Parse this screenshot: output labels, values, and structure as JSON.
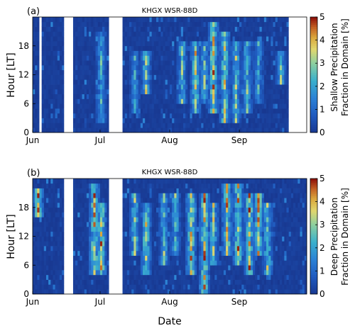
{
  "chart_data": [
    {
      "type": "heatmap",
      "panel_label": "(a)",
      "title": "KHGX WSR-88D",
      "xlabel": "",
      "ylabel": "Hour [LT]",
      "x_ticks": [
        "Jun",
        "Jul",
        "Aug",
        "Sep"
      ],
      "y_ticks": [
        "0",
        "6",
        "12",
        "18"
      ],
      "xlim": [
        "Jun 1",
        "Sep 30"
      ],
      "ylim": [
        0,
        23
      ],
      "colorbar": {
        "label_line1": "Shallow Precipitation",
        "label_line2": "Fraction in Domain [%]",
        "ticks": [
          "0",
          "1",
          "2",
          "3",
          "4",
          "5"
        ],
        "range": [
          0,
          5
        ]
      },
      "missing_days": [
        3,
        14,
        15,
        16,
        17,
        34,
        35,
        36,
        37,
        38,
        39,
        114,
        115,
        116,
        117,
        118,
        119,
        120,
        121
      ],
      "active_periods": [
        {
          "day": 30,
          "hours": [
            2,
            20
          ],
          "peak": 3.0
        },
        {
          "day": 45,
          "hours": [
            4,
            16
          ],
          "peak": 2.8
        },
        {
          "day": 50,
          "hours": [
            8,
            16
          ],
          "peak": 4.0
        },
        {
          "day": 66,
          "hours": [
            6,
            18
          ],
          "peak": 3.5
        },
        {
          "day": 72,
          "hours": [
            4,
            18
          ],
          "peak": 4.5
        },
        {
          "day": 76,
          "hours": [
            6,
            18
          ],
          "peak": 3.5
        },
        {
          "day": 80,
          "hours": [
            4,
            22
          ],
          "peak": 5.0
        },
        {
          "day": 85,
          "hours": [
            2,
            20
          ],
          "peak": 4.5
        },
        {
          "day": 90,
          "hours": [
            2,
            18
          ],
          "peak": 3.8
        },
        {
          "day": 95,
          "hours": [
            4,
            18
          ],
          "peak": 3.5
        },
        {
          "day": 100,
          "hours": [
            6,
            18
          ],
          "peak": 3.0
        },
        {
          "day": 110,
          "hours": [
            10,
            16
          ],
          "peak": 3.5
        }
      ]
    },
    {
      "type": "heatmap",
      "panel_label": "(b)",
      "title": "KHGX WSR-88D",
      "xlabel": "Date",
      "ylabel": "Hour [LT]",
      "x_ticks": [
        "Jun",
        "Jul",
        "Aug",
        "Sep"
      ],
      "y_ticks": [
        "0",
        "6",
        "12",
        "18"
      ],
      "xlim": [
        "Jun 1",
        "Sep 30"
      ],
      "ylim": [
        0,
        23
      ],
      "colorbar": {
        "label_line1": "Deep Precipitation",
        "label_line2": "Fraction in Domain [%]",
        "ticks": [
          "0",
          "1",
          "2",
          "3",
          "4",
          "5"
        ],
        "range": [
          0,
          5
        ]
      },
      "missing_days": [
        14,
        15,
        16,
        17,
        34,
        35,
        36,
        37,
        38,
        39
      ],
      "active_periods": [
        {
          "day": 2,
          "hours": [
            16,
            21
          ],
          "peak": 5.0
        },
        {
          "day": 27,
          "hours": [
            4,
            22
          ],
          "peak": 5.0
        },
        {
          "day": 30,
          "hours": [
            4,
            18
          ],
          "peak": 5.0
        },
        {
          "day": 45,
          "hours": [
            8,
            20
          ],
          "peak": 4.0
        },
        {
          "day": 50,
          "hours": [
            4,
            18
          ],
          "peak": 4.5
        },
        {
          "day": 58,
          "hours": [
            6,
            20
          ],
          "peak": 3.5
        },
        {
          "day": 63,
          "hours": [
            8,
            20
          ],
          "peak": 3.5
        },
        {
          "day": 70,
          "hours": [
            4,
            20
          ],
          "peak": 5.0
        },
        {
          "day": 76,
          "hours": [
            0,
            20
          ],
          "peak": 5.0
        },
        {
          "day": 80,
          "hours": [
            6,
            18
          ],
          "peak": 4.0
        },
        {
          "day": 86,
          "hours": [
            8,
            22
          ],
          "peak": 5.0
        },
        {
          "day": 91,
          "hours": [
            6,
            22
          ],
          "peak": 5.0
        },
        {
          "day": 96,
          "hours": [
            4,
            20
          ],
          "peak": 5.0
        },
        {
          "day": 100,
          "hours": [
            8,
            20
          ],
          "peak": 5.0
        },
        {
          "day": 104,
          "hours": [
            4,
            18
          ],
          "peak": 4.0
        }
      ]
    }
  ]
}
